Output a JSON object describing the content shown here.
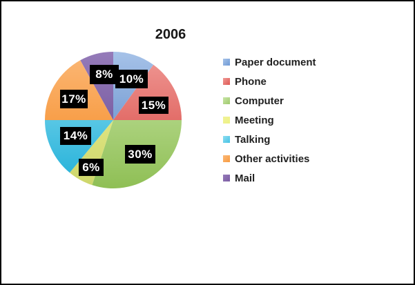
{
  "page": {
    "background": "#ffffff",
    "border_color": "#000000"
  },
  "chart_data": {
    "type": "pie",
    "title": "2006",
    "legend_position": "right",
    "start_angle_deg": 0,
    "direction": "clockwise",
    "total": 100,
    "data_label_bg": "#000000",
    "data_label_color": "#ffffff",
    "slices": [
      {
        "label": "Paper document",
        "value": 10,
        "data_label": "10%",
        "color": "#6f9ad6",
        "color_light": "#a6c2e8",
        "color_dark": "#4f7ec2"
      },
      {
        "label": "Phone",
        "value": 15,
        "data_label": "15%",
        "color": "#de5853",
        "color_light": "#f09a96",
        "color_dark": "#d5413c"
      },
      {
        "label": "Computer",
        "value": 30,
        "data_label": "30%",
        "color": "#9fc96d",
        "color_light": "#c8e5a6",
        "color_dark": "#8fbf55"
      },
      {
        "label": "Meeting",
        "value": 6,
        "data_label": "6%",
        "color": "#eef283",
        "color_light": "#f0f298",
        "color_dark": "#cdd66a"
      },
      {
        "label": "Talking",
        "value": 14,
        "data_label": "14%",
        "color": "#45c2e5",
        "color_light": "#90def1",
        "color_dark": "#1fafd8"
      },
      {
        "label": "Other activities",
        "value": 17,
        "data_label": "17%",
        "color": "#f89b40",
        "color_light": "#fbb877",
        "color_dark": "#f5861c"
      },
      {
        "label": "Mail",
        "value": 8,
        "data_label": "8%",
        "color": "#7b5ca3",
        "color_light": "#957bb9",
        "color_dark": "#63458f"
      }
    ]
  }
}
